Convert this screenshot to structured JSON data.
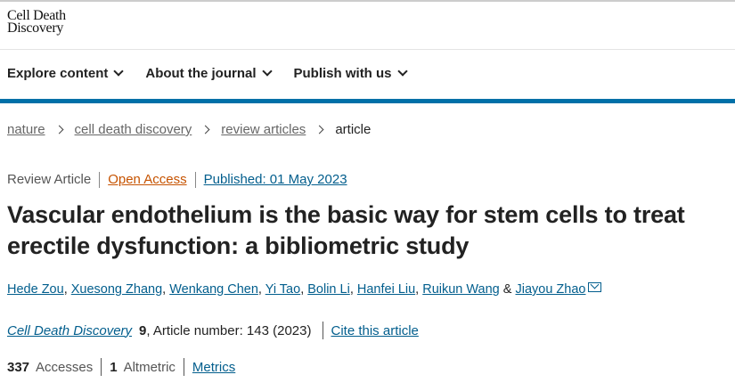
{
  "logo": {
    "line1": "Cell Death",
    "line2": "Discovery"
  },
  "nav": [
    {
      "label": "Explore content"
    },
    {
      "label": "About the journal"
    },
    {
      "label": "Publish with us"
    }
  ],
  "breadcrumb": [
    {
      "label": "nature"
    },
    {
      "label": "cell death discovery"
    },
    {
      "label": "review articles"
    },
    {
      "label": "article"
    }
  ],
  "meta": {
    "type": "Review Article",
    "access": "Open Access",
    "published": "Published: 01 May 2023"
  },
  "title": "Vascular endothelium is the basic way for stem cells to treat erectile dysfunction: a bibliometric study",
  "authors": [
    "Hede Zou",
    "Xuesong Zhang",
    "Wenkang Chen",
    "Yi Tao",
    "Bolin Li",
    "Hanfei Liu",
    "Ruikun Wang",
    "Jiayou Zhao"
  ],
  "author_sep": ",",
  "author_and": "&",
  "citation": {
    "journal": "Cell Death Discovery",
    "volume": "9",
    "rest": ", Article number: 143 (2023)",
    "cite": "Cite this article"
  },
  "metrics": {
    "accesses": "337",
    "accesses_label": "Accesses",
    "altmetric": "1",
    "altmetric_label": "Altmetric",
    "link": "Metrics"
  },
  "colors": {
    "link": "#025e8d",
    "accent_bar": "#0070a8",
    "open_access": "#c65301"
  }
}
